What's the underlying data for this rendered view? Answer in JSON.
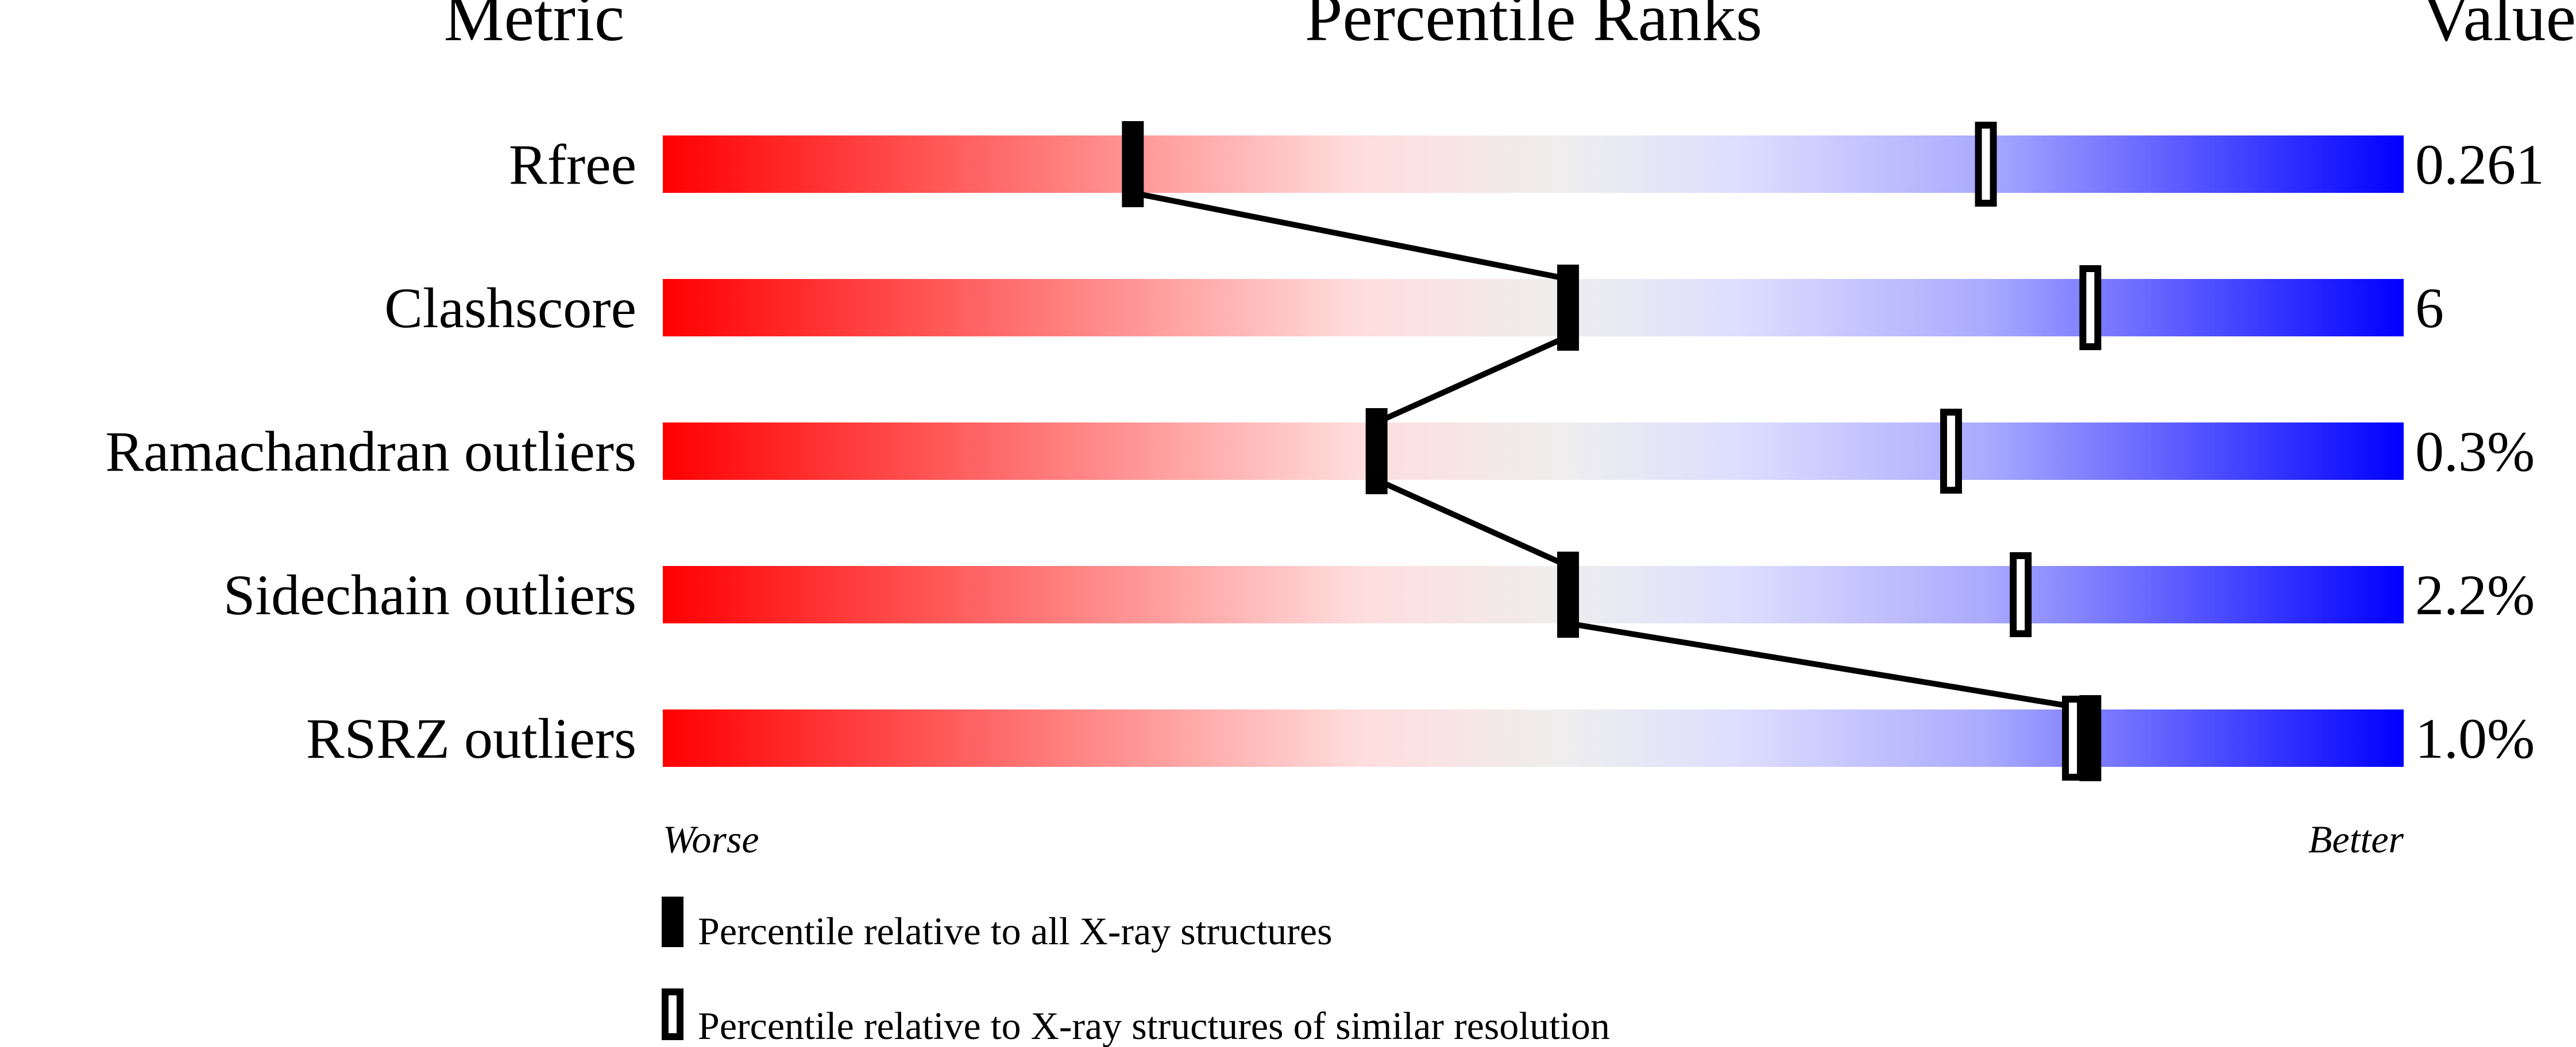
{
  "chart_data": {
    "type": "percentile-ranks",
    "headers": {
      "metric": "Metric",
      "title": "Percentile Ranks",
      "value": "Value"
    },
    "xlim": [
      0,
      100
    ],
    "axis_labels": {
      "left": "Worse",
      "right": "Better"
    },
    "gradient_colors": [
      "#ff0000",
      "#ffdddd",
      "#eeeeee",
      "#ddddff",
      "#aaaaff",
      "#0000ff"
    ],
    "metrics": [
      {
        "name": "Rfree",
        "value": "0.261",
        "percentile_all": 27,
        "percentile_similar": 76
      },
      {
        "name": "Clashscore",
        "value": "6",
        "percentile_all": 52,
        "percentile_similar": 82
      },
      {
        "name": "Ramachandran outliers",
        "value": "0.3%",
        "percentile_all": 41,
        "percentile_similar": 74
      },
      {
        "name": "Sidechain outliers",
        "value": "2.2%",
        "percentile_all": 52,
        "percentile_similar": 78
      },
      {
        "name": "RSRZ outliers",
        "value": "1.0%",
        "percentile_all": 82,
        "percentile_similar": 81
      }
    ],
    "legend": {
      "all": "Percentile relative to all X-ray structures",
      "similar": "Percentile relative to X-ray structures of similar resolution"
    }
  }
}
